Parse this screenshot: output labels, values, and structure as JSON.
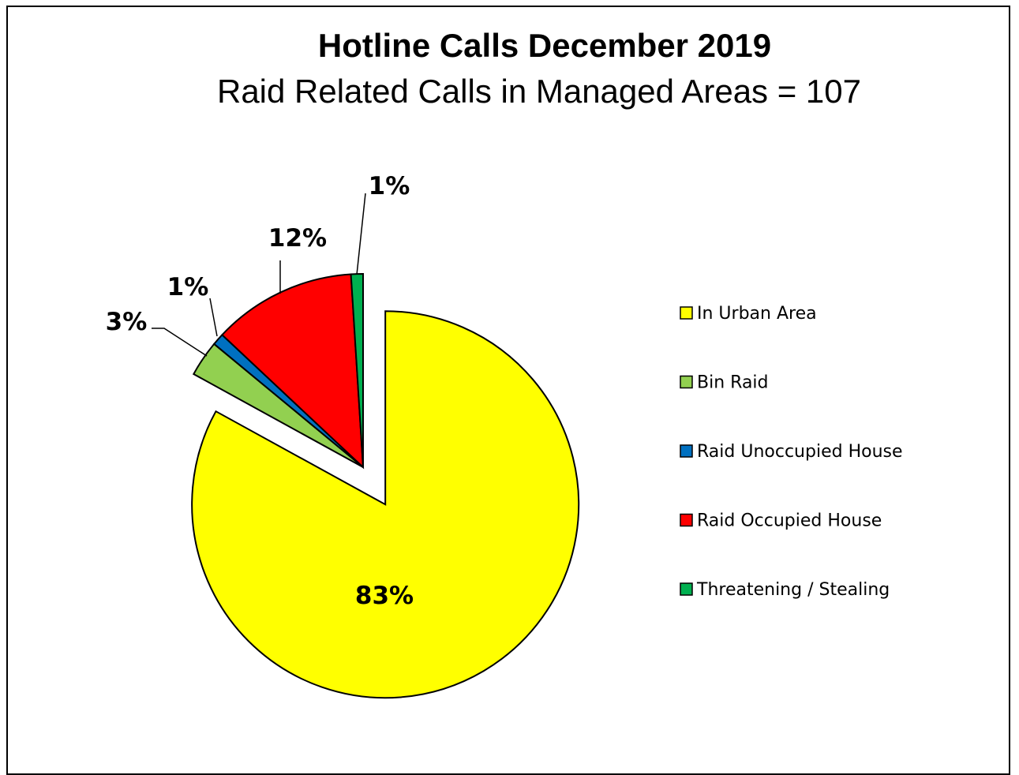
{
  "chart_data": {
    "type": "pie",
    "title": "Hotline Calls December 2019",
    "subtitle": "Raid Related Calls in Managed Areas  = 107",
    "slices": [
      {
        "label": "In Urban Area",
        "percent": 83,
        "percent_label": "83%",
        "color": "#FFFF00",
        "exploded": true
      },
      {
        "label": "Bin Raid",
        "percent": 3,
        "percent_label": "3%",
        "color": "#92D050",
        "exploded": false
      },
      {
        "label": "Raid Unoccupied House",
        "percent": 1,
        "percent_label": "1%",
        "color": "#0070C0",
        "exploded": false
      },
      {
        "label": "Raid Occupied House",
        "percent": 12,
        "percent_label": "12%",
        "color": "#FF0000",
        "exploded": false
      },
      {
        "label": "Threatening / Stealing",
        "percent": 1,
        "percent_label": "1%",
        "color": "#00B050",
        "exploded": false
      }
    ],
    "legend_position": "right"
  }
}
